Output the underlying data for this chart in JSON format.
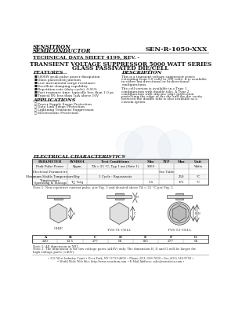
{
  "company": "SENSITRON",
  "company2": "SEMICONDUCTOR",
  "part_number": "SEN-R-1050-XXX",
  "datasheet_title": "TECHNICAL DATA SHEET 4199, REV. -",
  "product_title1": "TRANSIENT VOLTAGE SUPPRESSOR 5000 WATT SERIES",
  "product_title2": "GLASS PASSIVATED DIE/CELL",
  "features_title": "FEATURES",
  "features": [
    "5000W peak pulse power dissipation",
    "Glass passivated junction",
    "Low incremental surge resistance",
    "Excellent clamping capability",
    "Repetition rate (duty cycle): 0.05%",
    "Fast response time: typically less than 1.0 ps",
    "Typical IR: less than 1μA above 10V"
  ],
  "applications_title": "APPLICATIONS",
  "applications": [
    "Power Supply Surge Protection",
    "Data Link Surge Protection",
    "Lightning Transient Suppression",
    "Electrostatic Protection"
  ],
  "description_title": "DESCRIPTION",
  "desc_lines1": [
    "This is a transient voltage suppressor series",
    "extending from 5.0 volts to 100 volts. It is available",
    "in either uni-directional or bi-directional",
    "configurations."
  ],
  "desc_lines2": [
    "The cell version is available in a Type 1",
    "configuration with double tabs. A Type 2",
    "configuration with silicone edge protection",
    "protecting the edge of the die and the die cavity",
    "between the double tabs is also available as a",
    "custom option."
  ],
  "elec_title": "ELECTRICAL CHARACTERISTICS",
  "table_headers": [
    "PARAMETER",
    "SYMBOL",
    "Test Conditions",
    "Min",
    "TYP",
    "Max",
    "Unit"
  ],
  "table_rows": [
    [
      "Peak Pulse Power",
      "Pppm",
      "TA = 25 °C, Typ 1 ms (Note 1)",
      "5000",
      "",
      "",
      "Watts"
    ],
    [
      "Electrical Parameters",
      "",
      "",
      "",
      "See Table",
      "",
      ""
    ],
    [
      "Maximum Stable Temperature",
      "Tstg",
      "1 Cycle - Repassivate",
      "",
      "",
      "250",
      "°C"
    ],
    [
      "Operating & Storage\nTemperature",
      "TJ, Tstg",
      "",
      "-55",
      "",
      "175",
      "°C"
    ]
  ],
  "note1": "Note 1: Non repetitive current pulse, per Fig. 3 and derated above TA = 25 °C per Fig. 2.",
  "dim_headers": [
    "A",
    "B",
    "C",
    "D",
    "E",
    "F",
    "G"
  ],
  "dim_values": [
    "220",
    "13.5",
    "277",
    "66",
    "305",
    "277",
    "66"
  ],
  "note_dim1": "Note 1: All dimension in MIL",
  "note_dim2": "Note 2: The dimension is for low voltage parts (≤40V) only. The dimension B, D and G will be larger for",
  "note_dim2b": "high voltage parts (>40V).",
  "footer1": "• 221 West Industry Court • Deer Park, NY 11729-4606 • Phone (631) 586-7600 • Fax (631) 242-9758 •",
  "footer2": "• World Wide Web Site: http://www.sensitron.com • E-Mail Address: sales@sensitron.com •",
  "label_chip": "CHIP",
  "label_tvs1": "TVS T1-CELL",
  "label_tvs2": "TVS T2-CELL",
  "bg_color": "#ffffff",
  "watermark_color": "#c8d8e8"
}
